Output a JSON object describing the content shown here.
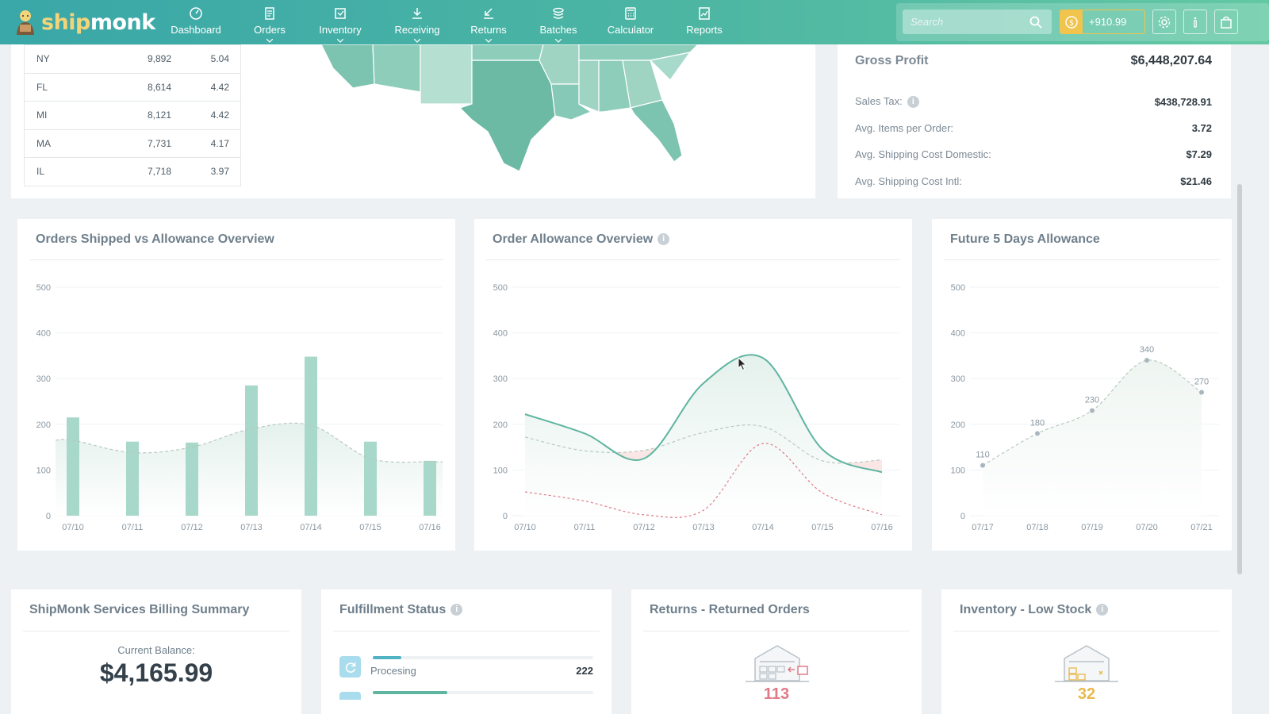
{
  "nav": {
    "logo_ship": "ship",
    "logo_monk": "monk",
    "items": [
      {
        "label": "Dashboard",
        "icon": "dashboard-icon",
        "dropdown": false
      },
      {
        "label": "Orders",
        "icon": "orders-icon",
        "dropdown": true
      },
      {
        "label": "Inventory",
        "icon": "inventory-icon",
        "dropdown": true
      },
      {
        "label": "Receiving",
        "icon": "receiving-icon",
        "dropdown": true
      },
      {
        "label": "Returns",
        "icon": "returns-icon",
        "dropdown": true
      },
      {
        "label": "Batches",
        "icon": "batches-icon",
        "dropdown": true
      },
      {
        "label": "Calculator",
        "icon": "calculator-icon",
        "dropdown": false
      },
      {
        "label": "Reports",
        "icon": "reports-icon",
        "dropdown": false
      }
    ],
    "search_placeholder": "Search",
    "balance": "+910.99",
    "accent": "#4db6a3",
    "balance_color": "#f0c44d"
  },
  "states": {
    "rows": [
      {
        "state": "NY",
        "orders": "9,892",
        "pct": "5.04"
      },
      {
        "state": "FL",
        "orders": "8,614",
        "pct": "4.42"
      },
      {
        "state": "MI",
        "orders": "8,121",
        "pct": "4.42"
      },
      {
        "state": "MA",
        "orders": "7,731",
        "pct": "4.17"
      },
      {
        "state": "IL",
        "orders": "7,718",
        "pct": "3.97"
      }
    ]
  },
  "profit": {
    "gross_label": "Gross Profit",
    "gross_value": "$6,448,207.64",
    "rows": [
      {
        "label": "Sales Tax:",
        "value": "$438,728.91"
      },
      {
        "label": "Avg. Items per Order:",
        "value": "3.72"
      },
      {
        "label": "Avg. Shipping Cost Domestic:",
        "value": "$7.29"
      },
      {
        "label": "Avg. Shipping Cost Intl:",
        "value": "$21.46"
      }
    ]
  },
  "charts_titles": {
    "shipped": "Orders Shipped vs Allowance Overview",
    "allowance": "Order Allowance Overview",
    "future": "Future 5 Days Allowance"
  },
  "chart_data": [
    {
      "type": "bar",
      "title": "Orders Shipped vs Allowance Overview",
      "categories": [
        "07/10",
        "07/11",
        "07/12",
        "07/13",
        "07/14",
        "07/15",
        "07/16"
      ],
      "series": [
        {
          "values": [
            215,
            162,
            160,
            285,
            348,
            162,
            120
          ]
        },
        {
          "values": [
            165,
            138,
            150,
            190,
            198,
            125,
            118
          ]
        }
      ],
      "ylim": [
        0,
        500
      ],
      "yticks": [
        0,
        100,
        200,
        300,
        400,
        500
      ],
      "colors": {
        "bar": "#a7d8c9",
        "allowance": "#b9c8c3"
      }
    },
    {
      "type": "line",
      "title": "Order Allowance Overview",
      "x": [
        "07/10",
        "07/11",
        "07/12",
        "07/13",
        "07/14",
        "07/15",
        "07/16"
      ],
      "series": [
        {
          "values": [
            222,
            180,
            125,
            290,
            345,
            145,
            95
          ]
        },
        {
          "values": [
            172,
            142,
            143,
            182,
            195,
            120,
            122
          ]
        },
        {
          "values": [
            52,
            32,
            2,
            12,
            158,
            50,
            2
          ]
        }
      ],
      "ylim": [
        0,
        500
      ],
      "yticks": [
        0,
        100,
        200,
        300,
        400,
        500
      ],
      "colors": {
        "actual": "#5fb5a0",
        "allowance": "#b9c8c3",
        "lower": "#e07a87",
        "over_fill": "#fbe6e6"
      }
    },
    {
      "type": "line",
      "title": "Future 5 Days Allowance",
      "x": [
        "07/17",
        "07/18",
        "07/19",
        "07/20",
        "07/21"
      ],
      "values": [
        110,
        180,
        230,
        340,
        270
      ],
      "ylim": [
        0,
        500
      ],
      "yticks": [
        0,
        100,
        200,
        300,
        400,
        500
      ],
      "colors": {
        "line": "#b9c8c3"
      }
    }
  ],
  "billing": {
    "title": "ShipMonk Services Billing Summary",
    "balance_label": "Current Balance:",
    "balance_value": "$4,165.99"
  },
  "fulfillment": {
    "title": "Fulfillment Status",
    "items": [
      {
        "label": "Procesing",
        "value": "222",
        "progress": 0.13
      }
    ]
  },
  "returns": {
    "title": "Returns - Returned Orders",
    "count": "113",
    "color": "#e07a87"
  },
  "low_stock": {
    "title": "Inventory - Low Stock",
    "count": "32",
    "color": "#e8b94a"
  }
}
